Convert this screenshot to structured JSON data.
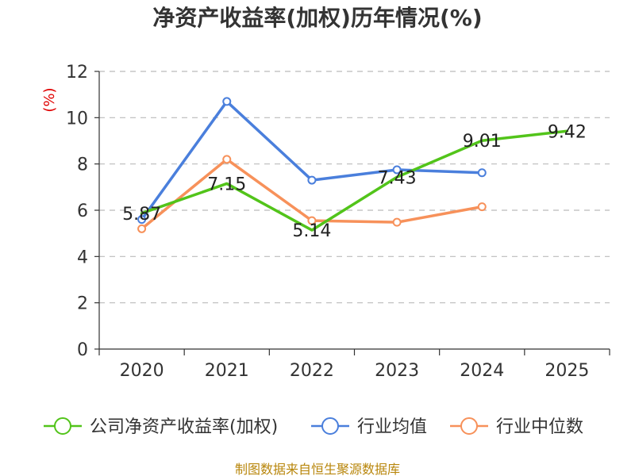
{
  "chart_data": {
    "type": "line",
    "title": "净资产收益率(加权)历年情况(%)",
    "xlabel": "",
    "ylabel": "(%)",
    "ylim": [
      0,
      12
    ],
    "yticks": [
      0,
      2,
      4,
      6,
      8,
      10,
      12
    ],
    "categories": [
      "2020",
      "2021",
      "2022",
      "2023",
      "2024",
      "2025"
    ],
    "grid": true,
    "legend_position": "bottom",
    "series": [
      {
        "name": "公司净资产收益率(加权)",
        "color": "#52c41a",
        "values": [
          5.87,
          7.15,
          5.14,
          7.43,
          9.01,
          9.42
        ],
        "labels": [
          "5.87",
          "7.15",
          "5.14",
          "7.43",
          "9.01",
          "9.42"
        ],
        "show_markers": false
      },
      {
        "name": "行业均值",
        "color": "#4a7fdc",
        "values": [
          5.6,
          10.7,
          7.3,
          7.75,
          7.62,
          null
        ],
        "show_markers": true
      },
      {
        "name": "行业中位数",
        "color": "#f7915a",
        "values": [
          5.2,
          8.2,
          5.55,
          5.48,
          6.15,
          null
        ],
        "show_markers": true
      }
    ],
    "source": "制图数据来自恒生聚源数据库"
  }
}
